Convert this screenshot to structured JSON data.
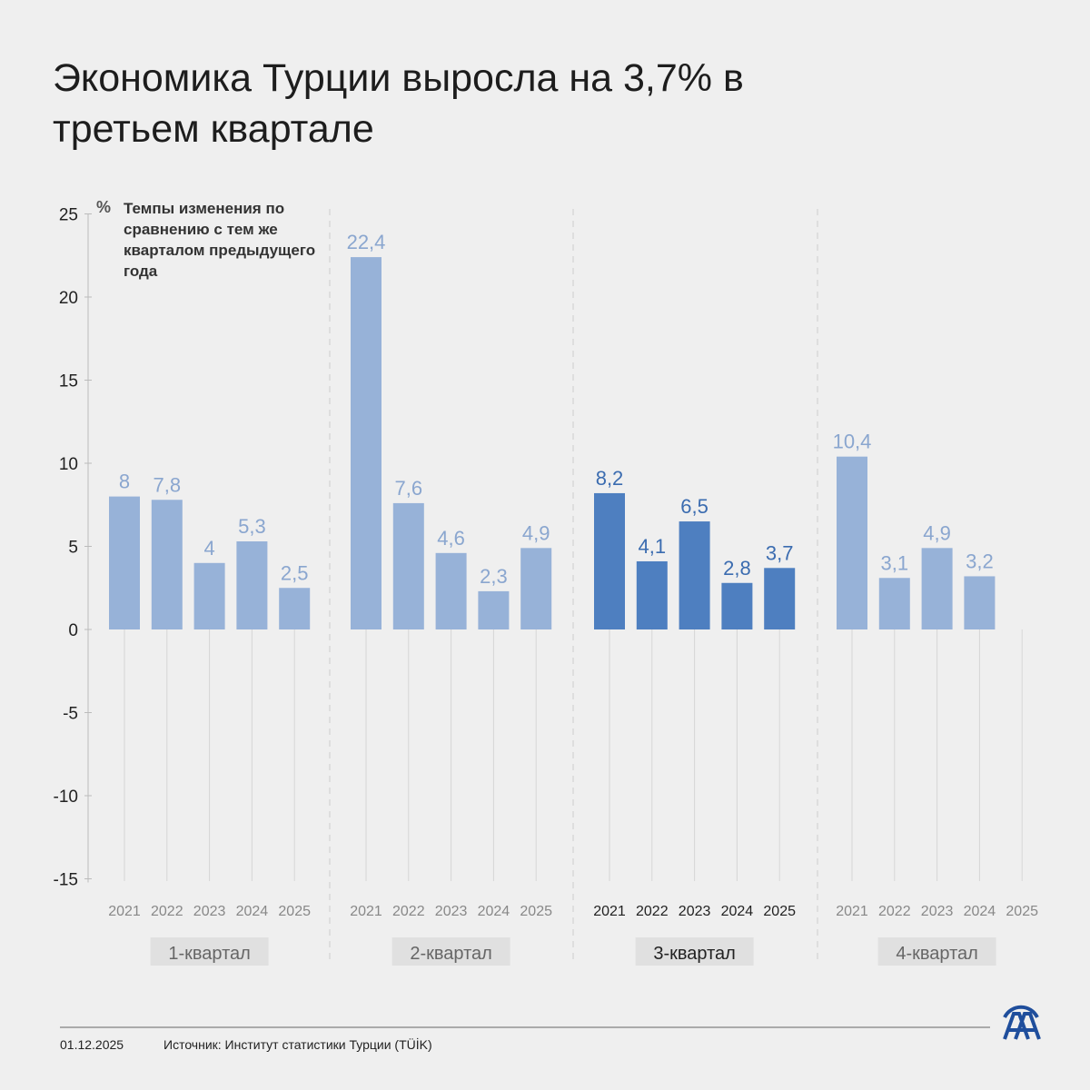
{
  "title": "Экономика Турции выросла на 3,7% в третьем квартале",
  "chart_data": {
    "type": "bar",
    "unit": "%",
    "ylabel": "Темпы изменения по сравнению с тем же кварталом предыдущего года",
    "ylim": [
      -15,
      25
    ],
    "yticks": [
      25,
      20,
      15,
      10,
      5,
      0,
      -5,
      -10,
      -15
    ],
    "years": [
      "2021",
      "2022",
      "2023",
      "2024",
      "2025"
    ],
    "groups": [
      {
        "name": "1-квартал",
        "values": [
          8,
          7.8,
          4,
          5.3,
          2.5
        ],
        "labels": [
          "8",
          "7,8",
          "4",
          "5,3",
          "2,5"
        ],
        "highlight": false
      },
      {
        "name": "2-квартал",
        "values": [
          22.4,
          7.6,
          4.6,
          2.3,
          4.9
        ],
        "labels": [
          "22,4",
          "7,6",
          "4,6",
          "2,3",
          "4,9"
        ],
        "highlight": false
      },
      {
        "name": "3-квартал",
        "values": [
          8.2,
          4.1,
          6.5,
          2.8,
          3.7
        ],
        "labels": [
          "8,2",
          "4,1",
          "6,5",
          "2,8",
          "3,7"
        ],
        "highlight": true
      },
      {
        "name": "4-квартал",
        "values": [
          10.4,
          3.1,
          4.9,
          3.2,
          null
        ],
        "labels": [
          "10,4",
          "3,1",
          "4,9",
          "3,2",
          ""
        ],
        "highlight": false
      }
    ],
    "colors": {
      "bar": "#97b2d8",
      "bar_highlight": "#4e7fc0",
      "label": "#8aa6cf",
      "label_highlight": "#3b6cb0"
    }
  },
  "footer": {
    "date": "01.12.2025",
    "source": "Источник: Институт статистики Турции (TÜİK)",
    "logo": "AA"
  }
}
